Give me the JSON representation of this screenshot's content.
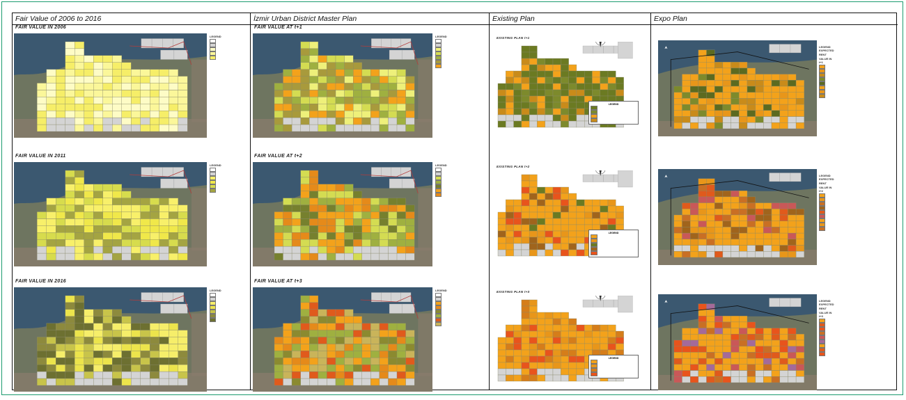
{
  "columns": [
    {
      "id": "fair",
      "header": "Fair Value of 2006 to 2016"
    },
    {
      "id": "izmir",
      "header": "İzmir Urban District Master Plan"
    },
    {
      "id": "existing",
      "header": "Existing Plan"
    },
    {
      "id": "expo",
      "header": "Expo Plan"
    }
  ],
  "fair_maps": [
    {
      "title": "FAIR VALUE IN 2006",
      "legend_title": "LEGEND",
      "palette": [
        "#fefcc6",
        "#fbf79a",
        "#f6ee68"
      ]
    },
    {
      "title": "FAIR VALUE IN 2011",
      "legend_title": "LEGEND",
      "palette": [
        "#f8f06a",
        "#f0e84a",
        "#d7dc4d",
        "#a4a442"
      ]
    },
    {
      "title": "FAIR VALUE IN 2016",
      "legend_title": "LEGEND",
      "palette": [
        "#f6ee6a",
        "#ece44c",
        "#c8c44a",
        "#8d8a3d",
        "#6d7031"
      ]
    }
  ],
  "izmir_maps": [
    {
      "title": "FAIR VALUE AT t+1",
      "legend_title": "LEGEND",
      "palette": [
        "#eef07a",
        "#d4dc52",
        "#9fb040",
        "#a89a3c",
        "#f3a21b"
      ]
    },
    {
      "title": "FAIR VALUE AT t+2",
      "legend_title": "LEGEND",
      "palette": [
        "#d4dc52",
        "#9fb040",
        "#76802e",
        "#f3a21b",
        "#e58a1a"
      ]
    },
    {
      "title": "FAIR VALUE AT t+3",
      "legend_title": "LEGEND",
      "palette": [
        "#f3a21b",
        "#e58a1a",
        "#8b8a30",
        "#9fb040",
        "#e05a1c",
        "#c9b45a"
      ]
    }
  ],
  "existing_maps": [
    {
      "title": "EXISTING PLAN  t+1",
      "legend_title": "LEGEND",
      "palette": [
        "#6b7a22",
        "#7d8a2c",
        "#f3a21b",
        "#c98b1a"
      ]
    },
    {
      "title": "EXISTING PLAN  t+2",
      "legend_title": "LEGEND",
      "palette": [
        "#f3a21b",
        "#e8961a",
        "#6b7a22",
        "#a0641c",
        "#e8541c"
      ]
    },
    {
      "title": "EXISTING PLAN  t+3",
      "legend_title": "LEGEND",
      "palette": [
        "#f3a21b",
        "#e8961a",
        "#d57d1a",
        "#e8541c"
      ]
    }
  ],
  "expo_maps": [
    {
      "legend_title": "LEGEND",
      "legend_sub": "EXPECTED RENT VALUE IN t+1",
      "palette": [
        "#f3a21b",
        "#e8961a",
        "#c98b1a",
        "#7d8a2c",
        "#5c6a20"
      ]
    },
    {
      "legend_title": "LEGEND",
      "legend_sub": "EXPECTED RENT VALUE IN t+2",
      "palette": [
        "#f3a21b",
        "#e8961a",
        "#c96f24",
        "#a0641c",
        "#e05a1c",
        "#c95858"
      ]
    },
    {
      "legend_title": "LEGEND",
      "legend_sub": "EXPECTED RENT VALUE IN t+3",
      "palette": [
        "#f3a21b",
        "#e05a1c",
        "#e8541c",
        "#c96f24",
        "#c95858",
        "#a46a9a"
      ]
    }
  ],
  "colors": {
    "sea": "#3b5870",
    "land": "#6e7560",
    "urban": "#8a7c6c",
    "grey_cell": "#d4d4d4",
    "boundary": "#b43c3c"
  }
}
